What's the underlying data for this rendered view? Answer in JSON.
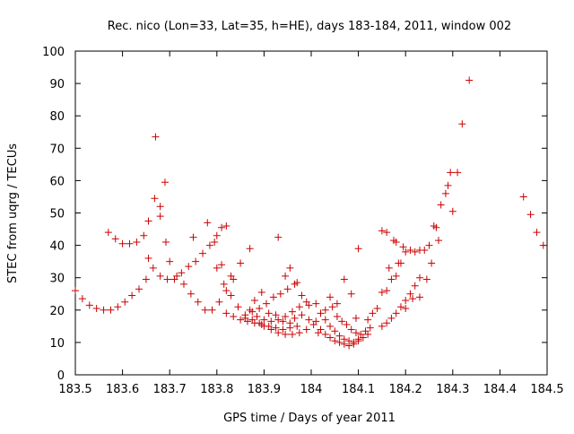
{
  "chart_data": {
    "type": "scatter",
    "title": "Rec. nico (Lon=33, Lat=35, h=HE), days 183-184, 2011, window 002",
    "xlabel": "GPS time / Days of year 2011",
    "ylabel": "STEC from uqrg / TECUs",
    "xlim": [
      183.5,
      184.5
    ],
    "ylim": [
      0,
      100
    ],
    "xticks": [
      "183.5",
      "183.6",
      "183.7",
      "183.8",
      "183.9",
      "184",
      "184.1",
      "184.2",
      "184.3",
      "184.4",
      "184.5"
    ],
    "yticks": [
      "0",
      "10",
      "20",
      "30",
      "40",
      "50",
      "60",
      "70",
      "80",
      "90",
      "100"
    ],
    "grid": false,
    "legend": "none",
    "marker": "+",
    "color": "#cc0000",
    "points": [
      [
        183.5,
        26.0
      ],
      [
        183.515,
        23.5
      ],
      [
        183.53,
        21.5
      ],
      [
        183.545,
        20.5
      ],
      [
        183.56,
        20.0
      ],
      [
        183.575,
        20.0
      ],
      [
        183.59,
        21.0
      ],
      [
        183.605,
        22.5
      ],
      [
        183.62,
        24.5
      ],
      [
        183.635,
        26.5
      ],
      [
        183.65,
        29.5
      ],
      [
        183.665,
        33.0
      ],
      [
        183.68,
        30.5
      ],
      [
        183.695,
        29.5
      ],
      [
        183.71,
        29.5
      ],
      [
        183.725,
        31.5
      ],
      [
        183.74,
        33.5
      ],
      [
        183.755,
        35.0
      ],
      [
        183.77,
        37.5
      ],
      [
        183.785,
        40.0
      ],
      [
        183.8,
        43.0
      ],
      [
        183.81,
        45.5
      ],
      [
        183.82,
        46.0
      ],
      [
        183.57,
        44.0
      ],
      [
        183.585,
        42.0
      ],
      [
        183.6,
        40.5
      ],
      [
        183.615,
        40.5
      ],
      [
        183.63,
        41.0
      ],
      [
        183.645,
        43.0
      ],
      [
        183.655,
        47.5
      ],
      [
        183.668,
        54.5
      ],
      [
        183.67,
        73.5
      ],
      [
        183.68,
        52.0
      ],
      [
        183.69,
        59.5
      ],
      [
        183.692,
        41.0
      ],
      [
        183.655,
        36.0
      ],
      [
        183.68,
        49.0
      ],
      [
        183.7,
        35.0
      ],
      [
        183.715,
        30.5
      ],
      [
        183.73,
        28.0
      ],
      [
        183.745,
        25.0
      ],
      [
        183.76,
        22.5
      ],
      [
        183.775,
        20.0
      ],
      [
        183.79,
        20.0
      ],
      [
        183.805,
        22.5
      ],
      [
        183.82,
        26.0
      ],
      [
        183.835,
        29.5
      ],
      [
        183.75,
        42.5
      ],
      [
        183.78,
        47.0
      ],
      [
        183.795,
        41.0
      ],
      [
        183.81,
        34.0
      ],
      [
        183.83,
        30.5
      ],
      [
        183.85,
        34.5
      ],
      [
        183.87,
        39.0
      ],
      [
        183.8,
        33.0
      ],
      [
        183.815,
        28.0
      ],
      [
        183.83,
        24.5
      ],
      [
        183.845,
        21.0
      ],
      [
        183.86,
        18.5
      ],
      [
        183.875,
        17.0
      ],
      [
        183.89,
        16.0
      ],
      [
        183.9,
        15.0
      ],
      [
        183.915,
        14.0
      ],
      [
        183.93,
        13.0
      ],
      [
        183.945,
        12.5
      ],
      [
        183.96,
        12.5
      ],
      [
        183.975,
        13.0
      ],
      [
        183.99,
        14.0
      ],
      [
        184.005,
        15.5
      ],
      [
        183.82,
        19.0
      ],
      [
        183.835,
        18.0
      ],
      [
        183.85,
        17.0
      ],
      [
        183.865,
        16.5
      ],
      [
        183.88,
        16.0
      ],
      [
        183.895,
        15.5
      ],
      [
        183.91,
        15.0
      ],
      [
        183.925,
        14.5
      ],
      [
        183.94,
        14.0
      ],
      [
        183.955,
        14.5
      ],
      [
        183.97,
        15.0
      ],
      [
        183.87,
        20.0
      ],
      [
        183.885,
        18.0
      ],
      [
        183.9,
        17.0
      ],
      [
        183.915,
        16.5
      ],
      [
        183.93,
        17.0
      ],
      [
        183.945,
        18.0
      ],
      [
        183.96,
        19.5
      ],
      [
        183.975,
        21.0
      ],
      [
        183.99,
        22.5
      ],
      [
        183.88,
        23.0
      ],
      [
        183.895,
        25.5
      ],
      [
        183.905,
        22.0
      ],
      [
        183.92,
        24.0
      ],
      [
        183.935,
        25.0
      ],
      [
        183.95,
        26.5
      ],
      [
        183.965,
        28.0
      ],
      [
        183.98,
        24.5
      ],
      [
        183.995,
        21.5
      ],
      [
        183.93,
        42.5
      ],
      [
        183.945,
        30.5
      ],
      [
        183.955,
        33.0
      ],
      [
        183.97,
        28.5
      ],
      [
        183.86,
        17.5
      ],
      [
        183.875,
        19.5
      ],
      [
        183.89,
        20.5
      ],
      [
        183.91,
        19.0
      ],
      [
        183.925,
        18.5
      ],
      [
        183.94,
        16.5
      ],
      [
        183.955,
        16.0
      ],
      [
        183.965,
        17.5
      ],
      [
        183.98,
        18.5
      ],
      [
        183.995,
        17.0
      ],
      [
        184.01,
        22.0
      ],
      [
        184.02,
        19.0
      ],
      [
        184.03,
        17.0
      ],
      [
        184.04,
        15.0
      ],
      [
        184.05,
        13.5
      ],
      [
        184.06,
        12.0
      ],
      [
        184.07,
        11.0
      ],
      [
        184.08,
        10.5
      ],
      [
        184.09,
        10.0
      ],
      [
        184.1,
        10.5
      ],
      [
        184.11,
        11.5
      ],
      [
        184.12,
        12.5
      ],
      [
        184.01,
        16.5
      ],
      [
        184.02,
        14.0
      ],
      [
        184.03,
        12.5
      ],
      [
        184.04,
        11.5
      ],
      [
        184.05,
        10.5
      ],
      [
        184.06,
        10.0
      ],
      [
        184.07,
        9.5
      ],
      [
        184.08,
        9.0
      ],
      [
        184.09,
        9.5
      ],
      [
        184.1,
        11.0
      ],
      [
        184.015,
        13.0
      ],
      [
        184.03,
        20.0
      ],
      [
        184.045,
        21.0
      ],
      [
        184.055,
        18.0
      ],
      [
        184.065,
        16.5
      ],
      [
        184.075,
        15.5
      ],
      [
        184.085,
        14.0
      ],
      [
        184.095,
        13.0
      ],
      [
        184.105,
        12.5
      ],
      [
        184.115,
        13.5
      ],
      [
        184.125,
        14.5
      ],
      [
        184.04,
        24.0
      ],
      [
        184.055,
        22.0
      ],
      [
        184.07,
        29.5
      ],
      [
        184.085,
        25.0
      ],
      [
        184.1,
        39.0
      ],
      [
        184.095,
        17.5
      ],
      [
        184.12,
        17.0
      ],
      [
        184.13,
        19.0
      ],
      [
        184.14,
        20.5
      ],
      [
        184.15,
        15.0
      ],
      [
        184.16,
        16.0
      ],
      [
        184.17,
        17.5
      ],
      [
        184.18,
        19.0
      ],
      [
        184.19,
        21.0
      ],
      [
        184.2,
        23.0
      ],
      [
        184.21,
        25.0
      ],
      [
        184.22,
        27.5
      ],
      [
        184.23,
        30.0
      ],
      [
        184.15,
        25.5
      ],
      [
        184.16,
        26.0
      ],
      [
        184.17,
        29.5
      ],
      [
        184.18,
        30.5
      ],
      [
        184.19,
        34.5
      ],
      [
        184.2,
        38.0
      ],
      [
        184.15,
        44.5
      ],
      [
        184.16,
        44.0
      ],
      [
        184.175,
        41.5
      ],
      [
        184.185,
        34.5
      ],
      [
        184.195,
        39.5
      ],
      [
        184.21,
        38.5
      ],
      [
        184.22,
        38.0
      ],
      [
        184.23,
        38.5
      ],
      [
        184.24,
        38.5
      ],
      [
        184.25,
        40.0
      ],
      [
        184.26,
        46.0
      ],
      [
        184.27,
        41.5
      ],
      [
        184.165,
        33.0
      ],
      [
        184.18,
        41.0
      ],
      [
        184.2,
        20.5
      ],
      [
        184.215,
        23.5
      ],
      [
        184.23,
        24.0
      ],
      [
        184.245,
        29.5
      ],
      [
        184.255,
        34.5
      ],
      [
        184.265,
        45.5
      ],
      [
        184.275,
        52.5
      ],
      [
        184.285,
        56.0
      ],
      [
        184.29,
        58.5
      ],
      [
        184.295,
        62.5
      ],
      [
        184.3,
        50.5
      ],
      [
        184.31,
        62.5
      ],
      [
        184.32,
        77.5
      ],
      [
        184.335,
        91.0
      ],
      [
        184.45,
        55.0
      ],
      [
        184.465,
        49.5
      ],
      [
        184.478,
        44.0
      ],
      [
        184.492,
        40.0
      ]
    ]
  }
}
